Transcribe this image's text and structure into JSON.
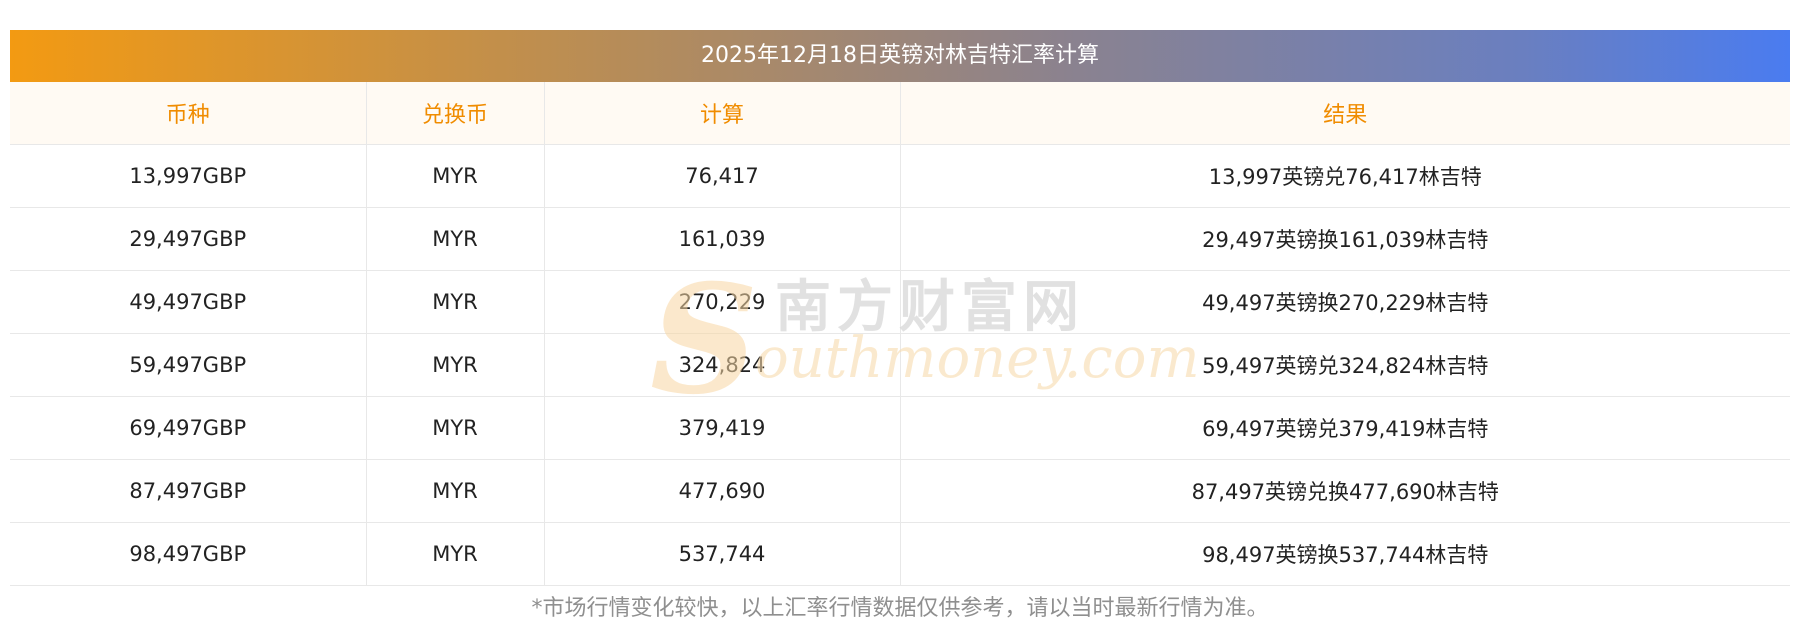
{
  "title": "2025年12月18日英镑对林吉特汇率计算",
  "table": {
    "headers": [
      "币种",
      "兑换币",
      "计算",
      "结果"
    ],
    "rows": [
      [
        "13,997GBP",
        "MYR",
        "76,417",
        "13,997英镑兑76,417林吉特"
      ],
      [
        "29,497GBP",
        "MYR",
        "161,039",
        "29,497英镑换161,039林吉特"
      ],
      [
        "49,497GBP",
        "MYR",
        "270,229",
        "49,497英镑换270,229林吉特"
      ],
      [
        "59,497GBP",
        "MYR",
        "324,824",
        "59,497英镑兑324,824林吉特"
      ],
      [
        "69,497GBP",
        "MYR",
        "379,419",
        "69,497英镑兑379,419林吉特"
      ],
      [
        "87,497GBP",
        "MYR",
        "477,690",
        "87,497英镑兑换477,690林吉特"
      ],
      [
        "98,497GBP",
        "MYR",
        "537,744",
        "98,497英镑换537,744林吉特"
      ]
    ]
  },
  "footnote": "*市场行情变化较快，以上汇率行情数据仅供参考，请以当时最新行情为准。",
  "watermark": {
    "letter": "S",
    "cn": "南方财富网",
    "en": "outhmoney.com"
  },
  "colors": {
    "header_text": "#f08c00",
    "title_gradient_start": "#f39a12",
    "title_gradient_end": "#4a7cf0"
  }
}
